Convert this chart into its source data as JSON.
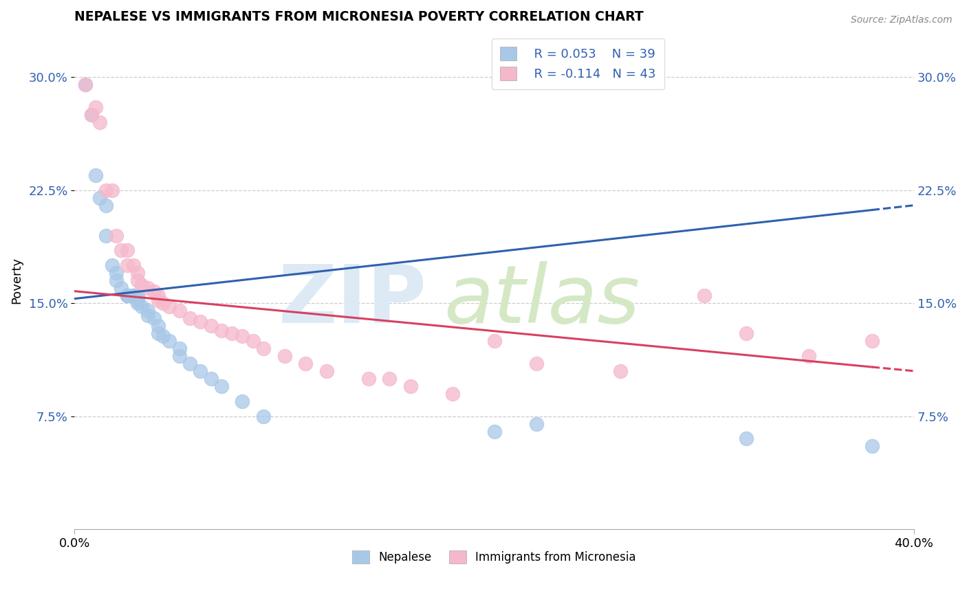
{
  "title": "NEPALESE VS IMMIGRANTS FROM MICRONESIA POVERTY CORRELATION CHART",
  "source": "Source: ZipAtlas.com",
  "ylabel": "Poverty",
  "ytick_values": [
    0.075,
    0.15,
    0.225,
    0.3
  ],
  "ytick_labels": [
    "7.5%",
    "15.0%",
    "22.5%",
    "30.0%"
  ],
  "xlim": [
    0.0,
    0.4
  ],
  "ylim": [
    0.0,
    0.33
  ],
  "xtick_labels": [
    "0.0%",
    "40.0%"
  ],
  "xtick_values": [
    0.0,
    0.4
  ],
  "nepalese_color": "#a8c8e8",
  "micronesia_color": "#f5b8cb",
  "nepalese_line_color": "#3060b0",
  "micronesia_line_color": "#d84060",
  "nepalese_x": [
    0.005,
    0.008,
    0.01,
    0.012,
    0.015,
    0.015,
    0.018,
    0.02,
    0.02,
    0.022,
    0.025,
    0.025,
    0.025,
    0.028,
    0.028,
    0.03,
    0.03,
    0.03,
    0.03,
    0.032,
    0.035,
    0.035,
    0.038,
    0.04,
    0.04,
    0.042,
    0.045,
    0.05,
    0.05,
    0.055,
    0.06,
    0.065,
    0.07,
    0.08,
    0.09,
    0.2,
    0.22,
    0.32,
    0.38
  ],
  "nepalese_y": [
    0.295,
    0.275,
    0.235,
    0.22,
    0.215,
    0.195,
    0.175,
    0.17,
    0.165,
    0.16,
    0.155,
    0.155,
    0.155,
    0.155,
    0.155,
    0.155,
    0.155,
    0.152,
    0.15,
    0.148,
    0.145,
    0.142,
    0.14,
    0.135,
    0.13,
    0.128,
    0.125,
    0.12,
    0.115,
    0.11,
    0.105,
    0.1,
    0.095,
    0.085,
    0.075,
    0.065,
    0.07,
    0.06,
    0.055
  ],
  "micronesia_x": [
    0.005,
    0.008,
    0.01,
    0.012,
    0.015,
    0.018,
    0.02,
    0.022,
    0.025,
    0.025,
    0.028,
    0.03,
    0.03,
    0.032,
    0.035,
    0.038,
    0.04,
    0.04,
    0.042,
    0.045,
    0.05,
    0.055,
    0.06,
    0.065,
    0.07,
    0.075,
    0.08,
    0.085,
    0.09,
    0.1,
    0.11,
    0.12,
    0.14,
    0.15,
    0.16,
    0.18,
    0.2,
    0.22,
    0.26,
    0.3,
    0.32,
    0.35,
    0.38
  ],
  "micronesia_y": [
    0.295,
    0.275,
    0.28,
    0.27,
    0.225,
    0.225,
    0.195,
    0.185,
    0.185,
    0.175,
    0.175,
    0.17,
    0.165,
    0.162,
    0.16,
    0.158,
    0.155,
    0.152,
    0.15,
    0.148,
    0.145,
    0.14,
    0.138,
    0.135,
    0.132,
    0.13,
    0.128,
    0.125,
    0.12,
    0.115,
    0.11,
    0.105,
    0.1,
    0.1,
    0.095,
    0.09,
    0.125,
    0.11,
    0.105,
    0.155,
    0.13,
    0.115,
    0.125
  ],
  "background_color": "#ffffff",
  "grid_color": "#cccccc"
}
